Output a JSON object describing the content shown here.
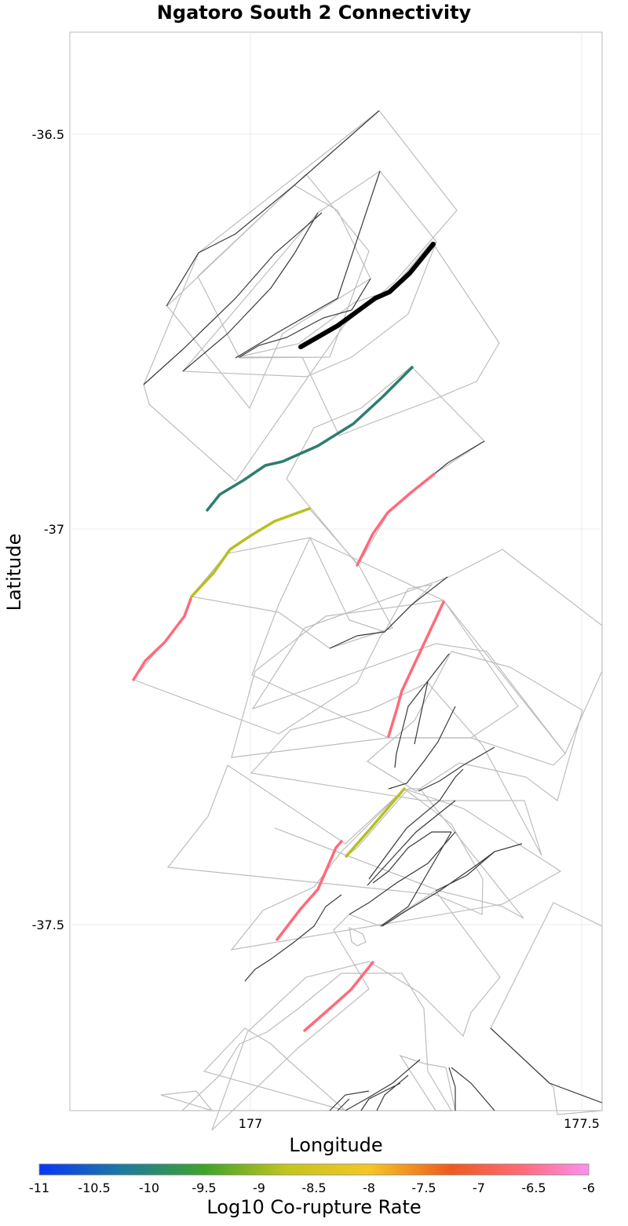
{
  "title": "Ngatoro South 2 Connectivity",
  "axes": {
    "x_label": "Longitude",
    "y_label": "Latitude",
    "x_ticks": [
      "177",
      "177.5"
    ],
    "y_ticks": [
      "-36.5",
      "-37",
      "-37.5"
    ]
  },
  "colorbar": {
    "label": "Log10 Co-rupture Rate",
    "min": -11,
    "max": -6,
    "tick_labels": [
      "-11",
      "-10.5",
      "-10",
      "-9.5",
      "-9",
      "-8.5",
      "-8",
      "-7.5",
      "-7",
      "-6.5",
      "-6"
    ],
    "colors": [
      "#0a36f5",
      "#1d7aa0",
      "#3ea32a",
      "#c4c41e",
      "#f5c623",
      "#ee5a1e",
      "#ff6b7a",
      "#ff8ff0"
    ]
  },
  "legend_colors": {
    "target_section": "#000000",
    "rate_-10": "#2e7d6f",
    "rate_-9": "#b7c020",
    "rate_-6.5": "#ff6b7a",
    "fault_trace": "#333333",
    "fault_outline": "#bfbfbf"
  },
  "features": {
    "target": "Ngatoro South 2"
  }
}
